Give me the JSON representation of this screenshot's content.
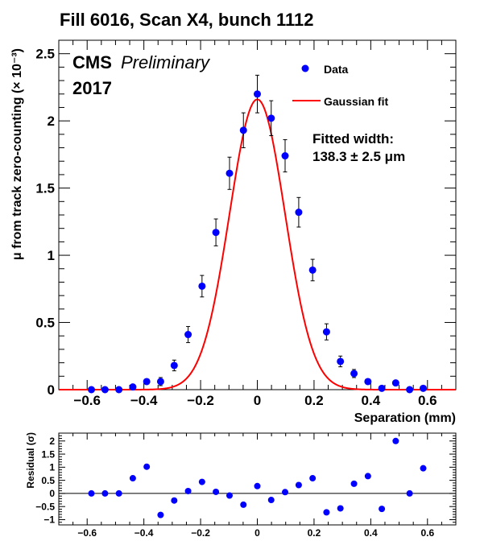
{
  "chart_data": [
    {
      "panel": "main",
      "type": "scatter",
      "title": "Fill 6016, Scan X4, bunch 1112",
      "xlabel": "Separation (mm)",
      "ylabel": "μ from track zero-counting (× 10⁻³)",
      "xlim": [
        -0.7,
        0.7
      ],
      "ylim": [
        0,
        2.6
      ],
      "x_ticks": [
        -0.6,
        -0.4,
        -0.2,
        0,
        0.2,
        0.4,
        0.6
      ],
      "x_tick_labels": [
        "−0.6",
        "−0.4",
        "−0.2",
        "0",
        "0.2",
        "0.4",
        "0.6"
      ],
      "y_ticks": [
        0,
        0.5,
        1,
        1.5,
        2,
        2.5
      ],
      "y_tick_labels": [
        "0",
        "0.5",
        "1",
        "1.5",
        "2",
        "2.5"
      ],
      "grid": false,
      "legend_position": "top-right",
      "series": [
        {
          "name": "Data",
          "color": "#0000ff",
          "x": [
            -0.585,
            -0.537,
            -0.488,
            -0.439,
            -0.39,
            -0.341,
            -0.293,
            -0.244,
            -0.195,
            -0.146,
            -0.098,
            -0.049,
            0.0,
            0.049,
            0.098,
            0.146,
            0.195,
            0.244,
            0.293,
            0.341,
            0.39,
            0.439,
            0.488,
            0.537,
            0.585
          ],
          "y": [
            0.0,
            0.0,
            0.0,
            0.02,
            0.06,
            0.06,
            0.18,
            0.41,
            0.77,
            1.17,
            1.61,
            1.93,
            2.2,
            2.02,
            1.74,
            1.32,
            0.89,
            0.43,
            0.21,
            0.12,
            0.06,
            0.01,
            0.05,
            0.0,
            0.01
          ],
          "yerr": [
            0.003,
            0.003,
            0.005,
            0.01,
            0.02,
            0.03,
            0.04,
            0.06,
            0.08,
            0.1,
            0.12,
            0.13,
            0.14,
            0.13,
            0.12,
            0.11,
            0.08,
            0.06,
            0.04,
            0.03,
            0.02,
            0.01,
            0.01,
            0.003,
            0.003
          ]
        },
        {
          "name": "Gaussian fit",
          "type": "line",
          "color": "#ff0000",
          "function": "gaussian",
          "amplitude": 2.16,
          "mean": 0.0,
          "sigma": 0.0978
        }
      ],
      "annotations": {
        "experiment": "CMS",
        "status": "Preliminary",
        "year": "2017",
        "fit_label": "Fitted width:",
        "fit_value": "138.3 ± 2.5 μm"
      }
    },
    {
      "panel": "residual",
      "type": "scatter",
      "ylabel": "Residual (σ)",
      "xlim": [
        -0.7,
        0.7
      ],
      "ylim": [
        -1.2,
        2.3
      ],
      "x_ticks": [
        -0.6,
        -0.4,
        -0.2,
        0,
        0.2,
        0.4,
        0.6
      ],
      "x_tick_labels": [
        "−0.6",
        "−0.4",
        "−0.2",
        "0",
        "0.2",
        "0.4",
        "0.6"
      ],
      "y_ticks": [
        -1,
        -0.5,
        0,
        0.5,
        1,
        1.5,
        2
      ],
      "y_tick_labels": [
        "−1",
        "−0.5",
        "0",
        "0.5",
        "1",
        "1.5",
        "2"
      ],
      "reference_line": 0,
      "series": [
        {
          "name": "",
          "color": "#0000ff",
          "x": [
            -0.585,
            -0.537,
            -0.488,
            -0.439,
            -0.39,
            -0.341,
            -0.293,
            -0.244,
            -0.195,
            -0.146,
            -0.098,
            -0.049,
            0.0,
            0.049,
            0.098,
            0.146,
            0.195,
            0.244,
            0.293,
            0.341,
            0.39,
            0.439,
            0.488,
            0.537,
            0.585
          ],
          "y": [
            0.0,
            0.0,
            0.0,
            0.58,
            1.02,
            -0.82,
            -0.27,
            0.09,
            0.44,
            0.06,
            -0.08,
            -0.43,
            0.28,
            -0.25,
            0.05,
            0.32,
            0.58,
            -0.72,
            -0.57,
            0.37,
            0.66,
            -0.59,
            2.0,
            0.0,
            0.96
          ]
        }
      ]
    }
  ]
}
